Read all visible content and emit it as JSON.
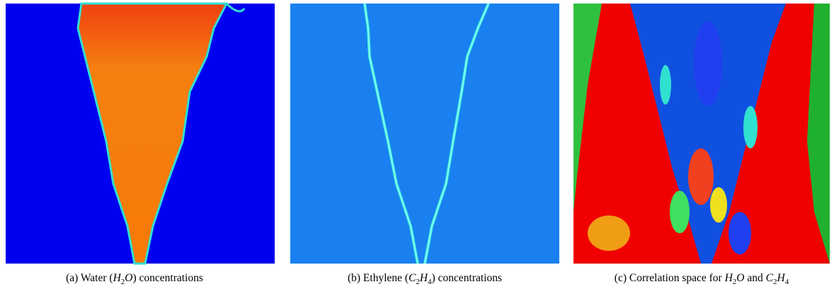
{
  "panels": [
    {
      "label": "(a)",
      "caption": [
        "Water (",
        "H",
        "2",
        "O",
        ") concentrations"
      ]
    },
    {
      "label": "(b)",
      "caption": [
        "Ethylene (",
        "C",
        "2",
        "H",
        "4",
        ") concentrations"
      ]
    },
    {
      "label": "(c)",
      "caption": [
        "Correlation space for ",
        "H",
        "2",
        "O",
        " and ",
        "C",
        "2",
        "H",
        "4"
      ]
    }
  ]
}
